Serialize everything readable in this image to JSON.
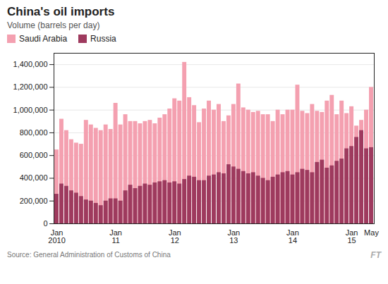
{
  "chart_data": {
    "type": "bar",
    "title": "China's oil imports",
    "subtitle": "Volume (barrels per day)",
    "source": "Source: General Administration of Customs of China",
    "watermark": "FT",
    "categories": [
      "Jan\n2010",
      null,
      null,
      null,
      null,
      null,
      null,
      null,
      null,
      null,
      null,
      null,
      "Jan\n11",
      null,
      null,
      null,
      null,
      null,
      null,
      null,
      null,
      null,
      null,
      null,
      "Jan\n12",
      null,
      null,
      null,
      null,
      null,
      null,
      null,
      null,
      null,
      null,
      null,
      "Jan\n13",
      null,
      null,
      null,
      null,
      null,
      null,
      null,
      null,
      null,
      null,
      null,
      "Jan\n14",
      null,
      null,
      null,
      null,
      null,
      null,
      null,
      null,
      null,
      null,
      null,
      "Jan\n15",
      null,
      null,
      null,
      "May"
    ],
    "series": [
      {
        "name": "Saudi Arabia",
        "color": "#f4a0b0",
        "values": [
          650000,
          920000,
          820000,
          740000,
          710000,
          700000,
          910000,
          870000,
          840000,
          820000,
          870000,
          830000,
          1060000,
          870000,
          960000,
          900000,
          900000,
          880000,
          900000,
          910000,
          880000,
          930000,
          960000,
          1010000,
          1100000,
          1080000,
          1420000,
          1110000,
          1040000,
          890000,
          1010000,
          1080000,
          1000000,
          1050000,
          900000,
          950000,
          1050000,
          1230000,
          1020000,
          1000000,
          980000,
          990000,
          960000,
          960000,
          900000,
          1000000,
          960000,
          1000000,
          1000000,
          1220000,
          990000,
          970000,
          1050000,
          990000,
          980000,
          1080000,
          1130000,
          960000,
          1080000,
          970000,
          1030000,
          860000,
          910000,
          1000000,
          1200000
        ]
      },
      {
        "name": "Russia",
        "color": "#9e3a5e",
        "values": [
          260000,
          350000,
          330000,
          290000,
          270000,
          240000,
          210000,
          200000,
          180000,
          160000,
          200000,
          220000,
          220000,
          200000,
          290000,
          340000,
          310000,
          330000,
          350000,
          340000,
          360000,
          370000,
          380000,
          360000,
          370000,
          350000,
          390000,
          420000,
          410000,
          380000,
          380000,
          420000,
          430000,
          450000,
          440000,
          520000,
          500000,
          480000,
          460000,
          440000,
          450000,
          420000,
          400000,
          380000,
          410000,
          430000,
          450000,
          460000,
          430000,
          450000,
          480000,
          470000,
          450000,
          540000,
          560000,
          490000,
          510000,
          550000,
          570000,
          660000,
          680000,
          760000,
          820000,
          660000,
          670000
        ]
      }
    ],
    "ylim": [
      0,
      1500000
    ],
    "yticks": [
      0,
      {
        "value": 200000,
        "label": "200,000"
      },
      {
        "value": 400000,
        "label": "400,000"
      },
      {
        "value": 600000,
        "label": "600,000"
      },
      {
        "value": 800000,
        "label": "800,000"
      },
      {
        "value": 1000000,
        "label": "1,000,000"
      },
      {
        "value": 1200000,
        "label": "1,200,000"
      },
      {
        "value": 1400000,
        "label": "1,400,000"
      }
    ],
    "grid": true,
    "stacked": false,
    "legend": "top-left"
  }
}
